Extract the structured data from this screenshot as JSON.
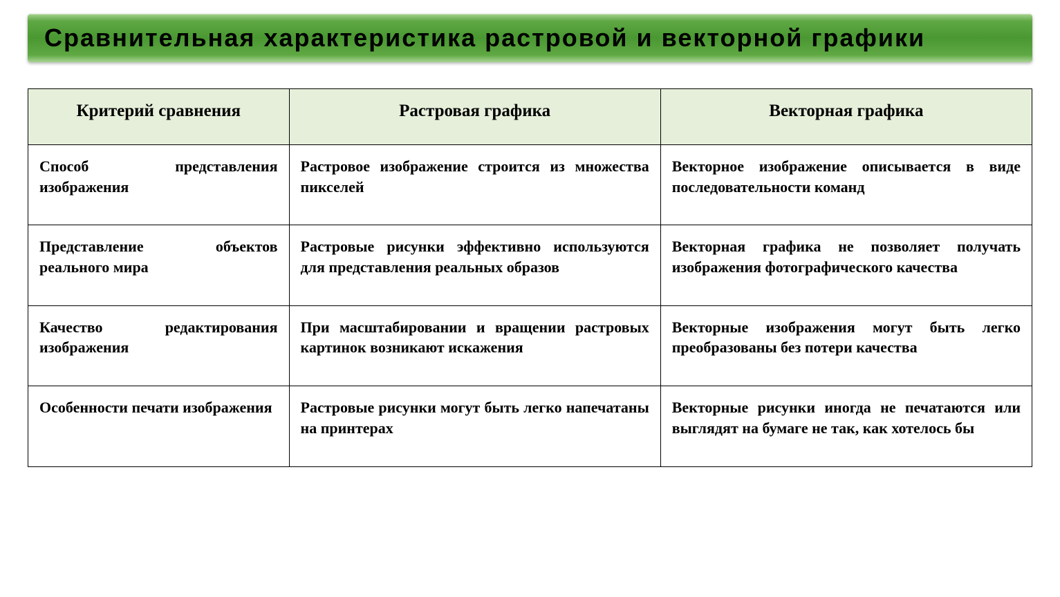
{
  "title": "Сравнительная характеристика растровой и векторной графики",
  "table": {
    "type": "table",
    "header_bg": "#e6efda",
    "border_color": "#000000",
    "title_gradient_top": "#a8d492",
    "title_gradient_mid": "#4a9832",
    "columns": [
      "Критерий сравнения",
      "Растровая графика",
      "Векторная графика"
    ],
    "rows": [
      [
        "Способ представления изображения",
        "Растровое изображение строится из множества пикселей",
        "Векторное изображение описывается в виде последовательности команд"
      ],
      [
        "Представление объектов реального мира",
        "Растровые рисунки эффективно используются для представления реальных образов",
        "Векторная графика не позволяет получать изображения фотографического качества"
      ],
      [
        "Качество редактирования изображения",
        "При масштабировании и вращении растровых картинок возникают искажения",
        "Векторные изображения могут быть легко преобразованы без потери качества"
      ],
      [
        "Особенности печати изображения",
        "Растровые рисунки могут быть легко напечатаны на принтерах",
        "Векторные рисунки иногда не печатаются или выглядят на бумаге не так, как хотелось бы"
      ]
    ],
    "header_fontsize": 25,
    "cell_fontsize": 22,
    "font_family": "Times New Roman"
  }
}
